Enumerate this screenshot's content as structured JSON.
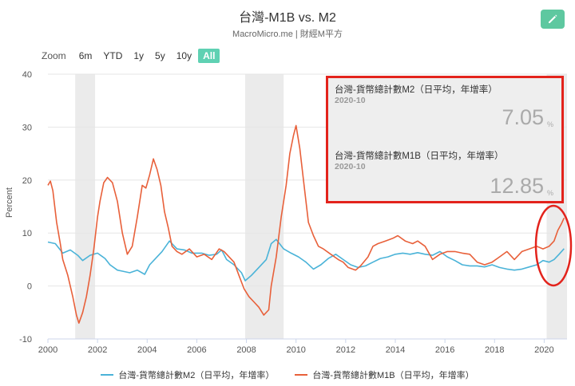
{
  "header": {
    "title": "台灣-M1B vs. M2",
    "subtitle": "MacroMicro.me | 財經M平方",
    "edit_icon": "pencil-icon"
  },
  "zoom": {
    "label": "Zoom",
    "options": [
      "6m",
      "YTD",
      "1y",
      "5y",
      "10y",
      "All"
    ],
    "selected": "All"
  },
  "tooltip": {
    "m2_label": "台灣-貨幣總計數M2（日平均，年增率）",
    "m2_date": "2020-10",
    "m2_value": "7.05",
    "m2_unit": "%",
    "m1b_label": "台灣-貨幣總計數M1B（日平均，年增率）",
    "m1b_date": "2020-10",
    "m1b_value": "12.85",
    "m1b_unit": "%"
  },
  "colors": {
    "m2": "#4ab3d8",
    "m1b": "#e8603a",
    "recession": "#ebebeb",
    "accent": "#5fd1b3",
    "annotation": "#e3231c"
  },
  "chart_data": {
    "type": "line",
    "title": "台灣-M1B vs. M2",
    "ylabel": "Percent",
    "xlim": [
      2000.0,
      2020.92
    ],
    "ylim": [
      -10,
      40
    ],
    "x_ticks": [
      "2000",
      "2002",
      "2004",
      "2006",
      "2008",
      "2010",
      "2012",
      "2014",
      "2016",
      "2018",
      "2020"
    ],
    "y_ticks": [
      "40",
      "30",
      "20",
      "10",
      "0",
      "-10"
    ],
    "shaded_periods": [
      [
        2001.1,
        2001.9
      ],
      [
        2007.95,
        2009.5
      ],
      [
        2020.1,
        2020.92
      ]
    ],
    "series": [
      {
        "name": "台灣-貨幣總計數M2（日平均，年增率）",
        "color": "#4ab3d8",
        "points": [
          [
            2000.0,
            8.3
          ],
          [
            2000.3,
            8.0
          ],
          [
            2000.6,
            6.2
          ],
          [
            2000.9,
            6.8
          ],
          [
            2001.2,
            5.8
          ],
          [
            2001.4,
            4.8
          ],
          [
            2001.7,
            5.8
          ],
          [
            2002.0,
            6.2
          ],
          [
            2002.3,
            5.2
          ],
          [
            2002.5,
            4.0
          ],
          [
            2002.8,
            3.0
          ],
          [
            2003.0,
            2.8
          ],
          [
            2003.3,
            2.5
          ],
          [
            2003.6,
            3.0
          ],
          [
            2003.9,
            2.2
          ],
          [
            2004.1,
            4.0
          ],
          [
            2004.4,
            5.5
          ],
          [
            2004.6,
            6.5
          ],
          [
            2004.9,
            8.5
          ],
          [
            2005.2,
            7.0
          ],
          [
            2005.5,
            6.8
          ],
          [
            2005.8,
            6.2
          ],
          [
            2006.2,
            6.2
          ],
          [
            2006.5,
            5.8
          ],
          [
            2006.8,
            6.0
          ],
          [
            2007.0,
            6.8
          ],
          [
            2007.2,
            5.0
          ],
          [
            2007.5,
            4.0
          ],
          [
            2007.8,
            2.5
          ],
          [
            2007.95,
            1.0
          ],
          [
            2008.2,
            2.0
          ],
          [
            2008.5,
            3.5
          ],
          [
            2008.8,
            5.0
          ],
          [
            2009.0,
            8.0
          ],
          [
            2009.2,
            8.8
          ],
          [
            2009.5,
            7.0
          ],
          [
            2009.8,
            6.2
          ],
          [
            2010.1,
            5.5
          ],
          [
            2010.4,
            4.5
          ],
          [
            2010.7,
            3.2
          ],
          [
            2011.0,
            4.0
          ],
          [
            2011.3,
            5.2
          ],
          [
            2011.6,
            6.0
          ],
          [
            2011.9,
            5.0
          ],
          [
            2012.2,
            4.0
          ],
          [
            2012.5,
            3.5
          ],
          [
            2012.8,
            3.8
          ],
          [
            2013.1,
            4.5
          ],
          [
            2013.4,
            5.2
          ],
          [
            2013.7,
            5.5
          ],
          [
            2014.0,
            6.0
          ],
          [
            2014.3,
            6.2
          ],
          [
            2014.6,
            6.0
          ],
          [
            2014.9,
            6.3
          ],
          [
            2015.2,
            6.0
          ],
          [
            2015.5,
            5.8
          ],
          [
            2015.8,
            6.5
          ],
          [
            2016.1,
            5.5
          ],
          [
            2016.4,
            4.8
          ],
          [
            2016.7,
            4.0
          ],
          [
            2017.0,
            3.8
          ],
          [
            2017.3,
            3.8
          ],
          [
            2017.6,
            3.6
          ],
          [
            2017.9,
            4.0
          ],
          [
            2018.2,
            3.5
          ],
          [
            2018.5,
            3.2
          ],
          [
            2018.8,
            3.0
          ],
          [
            2019.1,
            3.2
          ],
          [
            2019.4,
            3.6
          ],
          [
            2019.7,
            4.0
          ],
          [
            2019.95,
            4.8
          ],
          [
            2020.2,
            4.5
          ],
          [
            2020.4,
            5.0
          ],
          [
            2020.6,
            6.0
          ],
          [
            2020.8,
            7.05
          ]
        ]
      },
      {
        "name": "台灣-貨幣總計數M1B（日平均，年增率）",
        "color": "#e8603a",
        "points": [
          [
            2000.0,
            19.0
          ],
          [
            2000.1,
            19.8
          ],
          [
            2000.2,
            18.0
          ],
          [
            2000.35,
            12.0
          ],
          [
            2000.5,
            8.0
          ],
          [
            2000.6,
            5.0
          ],
          [
            2000.8,
            2.0
          ],
          [
            2001.0,
            -2.0
          ],
          [
            2001.15,
            -5.5
          ],
          [
            2001.25,
            -7.0
          ],
          [
            2001.4,
            -5.0
          ],
          [
            2001.55,
            -2.0
          ],
          [
            2001.7,
            2.0
          ],
          [
            2001.85,
            7.0
          ],
          [
            2002.0,
            13.0
          ],
          [
            2002.1,
            16.0
          ],
          [
            2002.25,
            19.5
          ],
          [
            2002.4,
            20.5
          ],
          [
            2002.6,
            19.5
          ],
          [
            2002.8,
            16.0
          ],
          [
            2003.0,
            10.0
          ],
          [
            2003.2,
            6.0
          ],
          [
            2003.4,
            7.5
          ],
          [
            2003.6,
            13.0
          ],
          [
            2003.8,
            19.0
          ],
          [
            2003.95,
            18.5
          ],
          [
            2004.1,
            21.0
          ],
          [
            2004.25,
            24.0
          ],
          [
            2004.4,
            22.0
          ],
          [
            2004.55,
            19.0
          ],
          [
            2004.7,
            14.0
          ],
          [
            2004.85,
            11.0
          ],
          [
            2005.0,
            7.5
          ],
          [
            2005.2,
            6.5
          ],
          [
            2005.4,
            6.0
          ],
          [
            2005.7,
            7.0
          ],
          [
            2006.0,
            5.5
          ],
          [
            2006.3,
            6.0
          ],
          [
            2006.6,
            5.0
          ],
          [
            2006.9,
            7.0
          ],
          [
            2007.1,
            6.5
          ],
          [
            2007.3,
            5.5
          ],
          [
            2007.5,
            4.5
          ],
          [
            2007.7,
            2.0
          ],
          [
            2007.9,
            -0.5
          ],
          [
            2008.1,
            -2.0
          ],
          [
            2008.3,
            -3.0
          ],
          [
            2008.5,
            -4.0
          ],
          [
            2008.7,
            -5.5
          ],
          [
            2008.9,
            -4.5
          ],
          [
            2009.0,
            0.0
          ],
          [
            2009.2,
            5.5
          ],
          [
            2009.4,
            13.0
          ],
          [
            2009.6,
            19.0
          ],
          [
            2009.75,
            25.0
          ],
          [
            2009.9,
            28.5
          ],
          [
            2010.0,
            30.3
          ],
          [
            2010.15,
            26.0
          ],
          [
            2010.3,
            20.0
          ],
          [
            2010.5,
            12.0
          ],
          [
            2010.7,
            9.5
          ],
          [
            2010.9,
            7.5
          ],
          [
            2011.1,
            7.0
          ],
          [
            2011.4,
            6.0
          ],
          [
            2011.7,
            5.0
          ],
          [
            2011.9,
            4.5
          ],
          [
            2012.1,
            3.5
          ],
          [
            2012.4,
            3.0
          ],
          [
            2012.6,
            3.8
          ],
          [
            2012.9,
            5.5
          ],
          [
            2013.1,
            7.5
          ],
          [
            2013.3,
            8.0
          ],
          [
            2013.6,
            8.5
          ],
          [
            2013.9,
            9.0
          ],
          [
            2014.1,
            9.5
          ],
          [
            2014.4,
            8.5
          ],
          [
            2014.7,
            8.0
          ],
          [
            2014.9,
            8.5
          ],
          [
            2015.2,
            7.5
          ],
          [
            2015.5,
            5.0
          ],
          [
            2015.8,
            6.0
          ],
          [
            2016.1,
            6.5
          ],
          [
            2016.4,
            6.5
          ],
          [
            2016.7,
            6.2
          ],
          [
            2017.0,
            6.0
          ],
          [
            2017.3,
            4.5
          ],
          [
            2017.6,
            4.0
          ],
          [
            2017.9,
            4.5
          ],
          [
            2018.2,
            5.5
          ],
          [
            2018.5,
            6.5
          ],
          [
            2018.8,
            5.0
          ],
          [
            2019.1,
            6.5
          ],
          [
            2019.4,
            7.0
          ],
          [
            2019.7,
            7.5
          ],
          [
            2019.95,
            7.0
          ],
          [
            2020.2,
            7.5
          ],
          [
            2020.4,
            8.5
          ],
          [
            2020.55,
            10.5
          ],
          [
            2020.7,
            11.8
          ],
          [
            2020.8,
            12.85
          ]
        ]
      }
    ]
  }
}
